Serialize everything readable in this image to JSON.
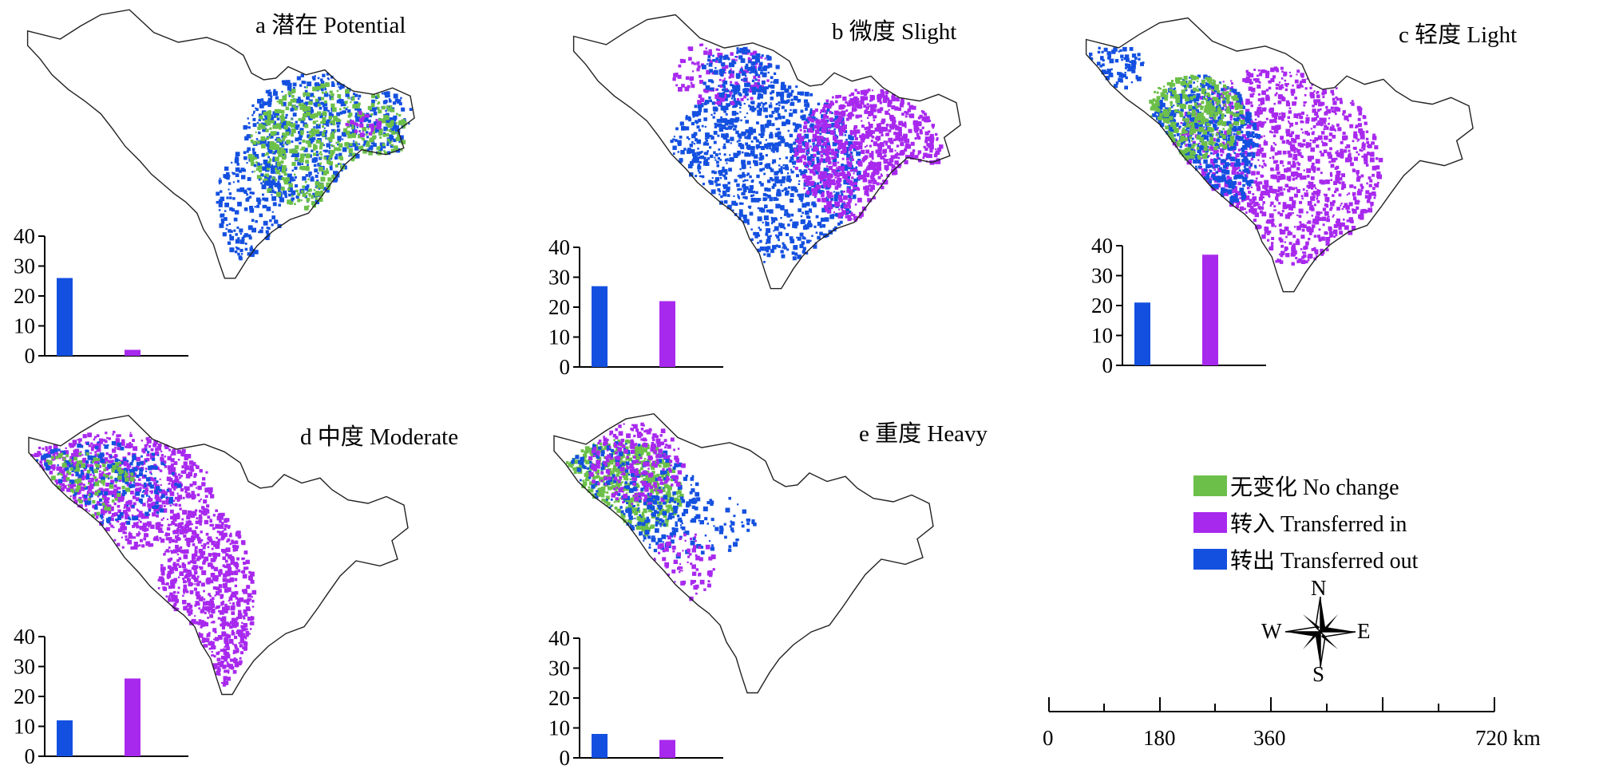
{
  "panels": [
    {
      "id": "a",
      "title": "a 潜在 Potential",
      "yticks": [
        "40",
        "30",
        "20",
        "10",
        "0"
      ],
      "values": {
        "transferred_out": 26,
        "transferred_in": 2
      },
      "ymax": 40
    },
    {
      "id": "b",
      "title": "b 微度 Slight",
      "yticks": [
        "40",
        "30",
        "20",
        "10",
        "0"
      ],
      "values": {
        "transferred_out": 27,
        "transferred_in": 22
      },
      "ymax": 40
    },
    {
      "id": "c",
      "title": "c 轻度 Light",
      "yticks": [
        "40",
        "30",
        "20",
        "10",
        "0"
      ],
      "values": {
        "transferred_out": 21,
        "transferred_in": 37
      },
      "ymax": 40
    },
    {
      "id": "d",
      "title": "d 中度 Moderate",
      "yticks": [
        "40",
        "30",
        "20",
        "10",
        "0"
      ],
      "values": {
        "transferred_out": 12,
        "transferred_in": 26
      },
      "ymax": 40
    },
    {
      "id": "e",
      "title": "e 重度 Heavy",
      "yticks": [
        "40",
        "30",
        "20",
        "10",
        "0"
      ],
      "values": {
        "transferred_out": 8,
        "transferred_in": 6
      },
      "ymax": 40
    }
  ],
  "legend": {
    "items": [
      {
        "label": "无变化 No change",
        "color": "#6cc04a"
      },
      {
        "label": "转入 Transferred in",
        "color": "#a829ee"
      },
      {
        "label": "转出 Transferred out",
        "color": "#1450e0"
      }
    ]
  },
  "compass": {
    "n": "N",
    "s": "S",
    "e": "E",
    "w": "W"
  },
  "scale": {
    "labels": [
      "0",
      "180",
      "360",
      "720 km"
    ]
  },
  "colors": {
    "no_change": "#6cc04a",
    "transferred_in": "#a829ee",
    "transferred_out": "#1450e0",
    "outline": "#222222"
  },
  "chart_data": [
    {
      "type": "bar",
      "title": "a 潜在 Potential",
      "categories": [
        "转出 Transferred out",
        "转入 Transferred in"
      ],
      "values": [
        26,
        2
      ],
      "ylim": [
        0,
        40
      ]
    },
    {
      "type": "bar",
      "title": "b 微度 Slight",
      "categories": [
        "转出 Transferred out",
        "转入 Transferred in"
      ],
      "values": [
        27,
        22
      ],
      "ylim": [
        0,
        40
      ]
    },
    {
      "type": "bar",
      "title": "c 轻度 Light",
      "categories": [
        "转出 Transferred out",
        "转入 Transferred in"
      ],
      "values": [
        21,
        37
      ],
      "ylim": [
        0,
        40
      ]
    },
    {
      "type": "bar",
      "title": "d 中度 Moderate",
      "categories": [
        "转出 Transferred out",
        "转入 Transferred in"
      ],
      "values": [
        12,
        26
      ],
      "ylim": [
        0,
        40
      ]
    },
    {
      "type": "bar",
      "title": "e 重度 Heavy",
      "categories": [
        "转出 Transferred out",
        "转入 Transferred in"
      ],
      "values": [
        8,
        6
      ],
      "ylim": [
        0,
        40
      ]
    }
  ]
}
